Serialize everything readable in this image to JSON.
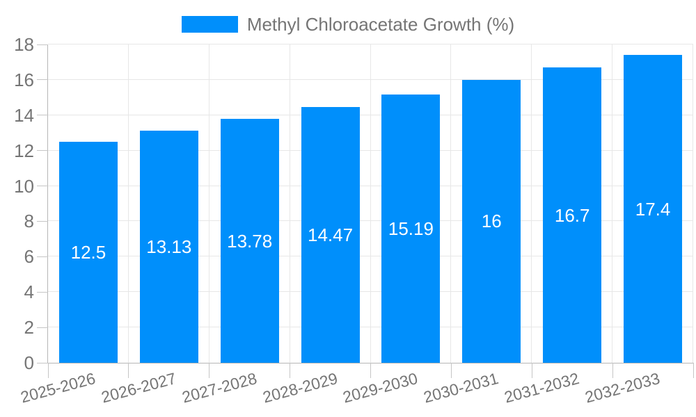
{
  "chart_data": {
    "type": "bar",
    "categories": [
      "2025-2026",
      "2026-2027",
      "2027-2028",
      "2028-2029",
      "2029-2030",
      "2030-2031",
      "2031-2032",
      "2032-2033"
    ],
    "series": [
      {
        "name": "Methyl Chloroacetate Growth (%)",
        "values": [
          12.5,
          13.13,
          13.78,
          14.47,
          15.19,
          16,
          16.7,
          17.4
        ]
      }
    ],
    "data_labels": [
      "12.5",
      "13.13",
      "13.78",
      "14.47",
      "15.19",
      "16",
      "16.7",
      "17.4"
    ],
    "title": "",
    "xlabel": "",
    "ylabel": "",
    "ylim": [
      0,
      18
    ],
    "yticks": [
      0,
      2,
      4,
      6,
      8,
      10,
      12,
      14,
      16,
      18
    ],
    "grid": true,
    "legend_position": "top",
    "xlabel_rotation_deg": -15
  },
  "colors": {
    "bar": "#008FFB",
    "gridline": "#e7e7e7",
    "axis_line": "#b6b6b6",
    "tick": "#c5c5c5",
    "label_text": "#757575",
    "data_label_text": "#ffffff",
    "background": "#ffffff"
  }
}
